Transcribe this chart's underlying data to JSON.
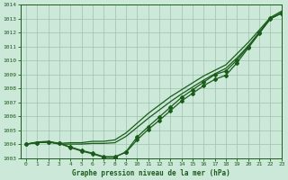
{
  "title": "Graphe pression niveau de la mer (hPa)",
  "xlim": [
    -0.5,
    23
  ],
  "ylim": [
    1003,
    1014
  ],
  "xticks": [
    0,
    1,
    2,
    3,
    4,
    5,
    6,
    7,
    8,
    9,
    10,
    11,
    12,
    13,
    14,
    15,
    16,
    17,
    18,
    19,
    20,
    21,
    22,
    23
  ],
  "yticks": [
    1003,
    1004,
    1005,
    1006,
    1007,
    1008,
    1009,
    1010,
    1011,
    1012,
    1013,
    1014
  ],
  "bg_color": "#cce8d8",
  "grid_color": "#9ec4ae",
  "line_color": "#1a5c1a",
  "s1": [
    1004.0,
    1004.15,
    1004.2,
    1004.05,
    1004.1,
    1004.1,
    1004.2,
    1004.2,
    1004.3,
    1004.8,
    1005.5,
    1006.2,
    1006.8,
    1007.4,
    1007.9,
    1008.4,
    1008.9,
    1009.3,
    1009.7,
    1010.5,
    1011.3,
    1012.2,
    1013.1,
    1013.55
  ],
  "s2": [
    1004.0,
    1004.1,
    1004.15,
    1004.0,
    1004.0,
    1004.0,
    1004.05,
    1004.05,
    1004.1,
    1004.55,
    1005.2,
    1005.85,
    1006.45,
    1007.05,
    1007.6,
    1008.1,
    1008.6,
    1009.05,
    1009.45,
    1010.2,
    1011.05,
    1012.0,
    1013.0,
    1013.45
  ],
  "s3": [
    1004.0,
    1004.1,
    1004.15,
    1004.05,
    1003.8,
    1003.55,
    1003.35,
    1003.1,
    1003.1,
    1003.4,
    1004.3,
    1005.05,
    1005.7,
    1006.4,
    1007.1,
    1007.65,
    1008.2,
    1008.65,
    1008.95,
    1009.85,
    1010.9,
    1011.95,
    1013.0,
    1013.4
  ],
  "s4": [
    1004.0,
    1004.1,
    1004.15,
    1004.05,
    1003.75,
    1003.5,
    1003.3,
    1003.05,
    1003.05,
    1003.45,
    1004.5,
    1005.25,
    1005.95,
    1006.65,
    1007.35,
    1007.9,
    1008.45,
    1009.0,
    1009.25,
    1010.05,
    1011.0,
    1012.05,
    1013.05,
    1013.4
  ]
}
